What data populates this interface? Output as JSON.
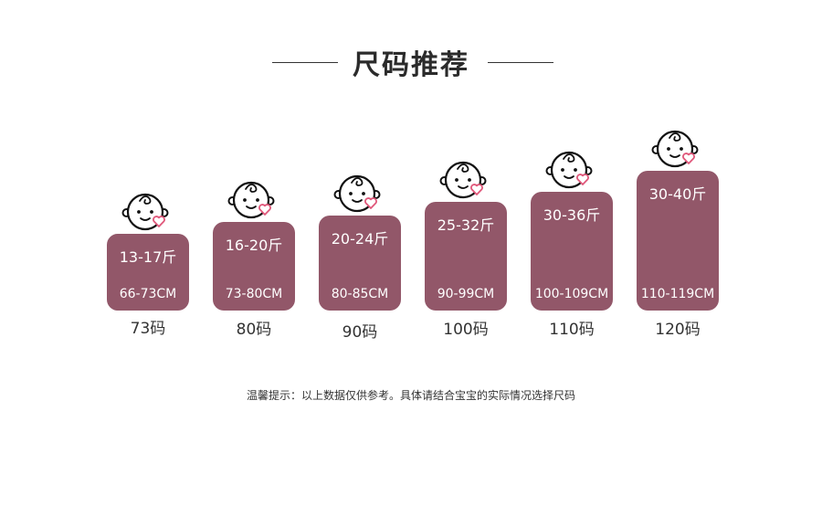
{
  "title": "尺码推荐",
  "bar_color": "#925769",
  "sizes": [
    {
      "weight": "13-17斤",
      "height": "66-73CM",
      "label": "73码"
    },
    {
      "weight": "16-20斤",
      "height": "73-80CM",
      "label": "80码"
    },
    {
      "weight": "20-24斤",
      "height": "80-85CM",
      "label": "90码"
    },
    {
      "weight": "25-32斤",
      "height": "90-99CM",
      "label": "100码"
    },
    {
      "weight": "30-36斤",
      "height": "100-109CM",
      "label": "110码"
    },
    {
      "weight": "30-40斤",
      "height": "110-119CM",
      "label": "120码"
    }
  ],
  "note": "温馨提示：以上数据仅供参考。具体请结合宝宝的实际情况选择尺码",
  "icons": {
    "baby": "baby-face-icon",
    "heart": "heart-icon"
  }
}
